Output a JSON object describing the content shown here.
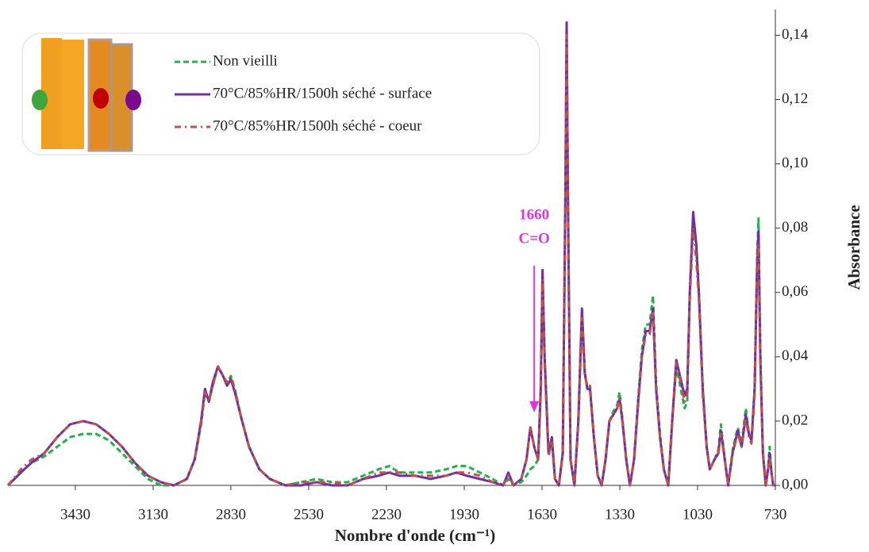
{
  "chart_data": {
    "type": "line",
    "xlabel": "Nombre d'onde (cm⁻¹)",
    "ylabel": "Absorbance",
    "xlim": [
      3690,
      730
    ],
    "ylim": [
      0,
      0.148
    ],
    "xticks": [
      3430,
      3130,
      2830,
      2530,
      2230,
      1930,
      1630,
      1330,
      1030,
      730
    ],
    "yticks": [
      {
        "value": 0,
        "label": "0,00"
      },
      {
        "value": 0.02,
        "label": "0,02"
      },
      {
        "value": 0.04,
        "label": "0,04"
      },
      {
        "value": 0.06,
        "label": "0,06"
      },
      {
        "value": 0.08,
        "label": "0,08"
      },
      {
        "value": 0.1,
        "label": "0,10"
      },
      {
        "value": 0.12,
        "label": "0,12"
      },
      {
        "value": 0.14,
        "label": "0,14"
      }
    ],
    "annotation": {
      "x": 1660,
      "text": "C=O",
      "color": "#e033e0"
    },
    "x": [
      3690,
      3640,
      3600,
      3550,
      3500,
      3450,
      3400,
      3350,
      3300,
      3250,
      3200,
      3150,
      3100,
      3050,
      3000,
      2970,
      2945,
      2930,
      2915,
      2900,
      2880,
      2860,
      2845,
      2830,
      2815,
      2790,
      2760,
      2720,
      2680,
      2620,
      2560,
      2500,
      2440,
      2380,
      2320,
      2260,
      2220,
      2180,
      2120,
      2060,
      2000,
      1960,
      1920,
      1870,
      1820,
      1780,
      1760,
      1740,
      1710,
      1690,
      1675,
      1660,
      1645,
      1635,
      1628,
      1620,
      1605,
      1592,
      1580,
      1565,
      1550,
      1540,
      1535,
      1530,
      1520,
      1505,
      1490,
      1476,
      1465,
      1455,
      1445,
      1430,
      1415,
      1400,
      1385,
      1370,
      1355,
      1340,
      1331,
      1320,
      1305,
      1291,
      1275,
      1260,
      1245,
      1230,
      1215,
      1202,
      1190,
      1175,
      1160,
      1143,
      1128,
      1112,
      1095,
      1080,
      1070,
      1060,
      1047,
      1035,
      1025,
      1010,
      995,
      983,
      965,
      950,
      940,
      925,
      912,
      895,
      875,
      860,
      844,
      832,
      822,
      810,
      800,
      795,
      788,
      778,
      767,
      758,
      752,
      745,
      738,
      730
    ],
    "series": [
      {
        "name": "Non vieilli",
        "color": "#22b14c",
        "dash": "dashed",
        "values": [
          0.0,
          0.004,
          0.007,
          0.009,
          0.012,
          0.015,
          0.016,
          0.016,
          0.014,
          0.01,
          0.006,
          0.002,
          0.0,
          0.0,
          0.002,
          0.008,
          0.019,
          0.029,
          0.026,
          0.031,
          0.037,
          0.034,
          0.032,
          0.034,
          0.03,
          0.021,
          0.012,
          0.005,
          0.002,
          0.0,
          0.001,
          0.002,
          0.001,
          0.001,
          0.003,
          0.005,
          0.006,
          0.004,
          0.004,
          0.004,
          0.005,
          0.006,
          0.006,
          0.004,
          0.002,
          0.0,
          0.002,
          0.0,
          0.001,
          0.003,
          0.005,
          0.006,
          0.008,
          0.03,
          0.065,
          0.04,
          0.01,
          0.014,
          0.002,
          0.0,
          0.01,
          0.09,
          0.144,
          0.09,
          0.008,
          0.0,
          0.02,
          0.054,
          0.035,
          0.03,
          0.031,
          0.015,
          0.003,
          0.0,
          0.008,
          0.02,
          0.023,
          0.025,
          0.029,
          0.021,
          0.008,
          0.0,
          0.008,
          0.026,
          0.042,
          0.05,
          0.05,
          0.059,
          0.032,
          0.016,
          0.005,
          0.0,
          0.02,
          0.037,
          0.03,
          0.024,
          0.026,
          0.06,
          0.083,
          0.074,
          0.06,
          0.03,
          0.012,
          0.005,
          0.008,
          0.011,
          0.019,
          0.008,
          0.0,
          0.011,
          0.018,
          0.013,
          0.024,
          0.016,
          0.014,
          0.03,
          0.072,
          0.083,
          0.042,
          0.01,
          0.0,
          0.006,
          0.012,
          0.004,
          0.0,
          0.0
        ]
      },
      {
        "name": "70°C/85%HR/1500h séché - surface",
        "color": "#7030a0",
        "dash": "solid",
        "values": [
          0.0,
          0.004,
          0.007,
          0.01,
          0.015,
          0.019,
          0.02,
          0.019,
          0.016,
          0.012,
          0.007,
          0.003,
          0.001,
          0.0,
          0.002,
          0.008,
          0.02,
          0.03,
          0.026,
          0.032,
          0.037,
          0.034,
          0.031,
          0.033,
          0.029,
          0.021,
          0.012,
          0.005,
          0.002,
          0.0,
          0.0,
          0.001,
          0.0,
          0.0,
          0.002,
          0.003,
          0.004,
          0.003,
          0.003,
          0.002,
          0.003,
          0.004,
          0.003,
          0.002,
          0.001,
          0.0,
          0.004,
          0.0,
          0.002,
          0.008,
          0.018,
          0.012,
          0.008,
          0.03,
          0.067,
          0.04,
          0.01,
          0.015,
          0.002,
          0.0,
          0.01,
          0.09,
          0.144,
          0.09,
          0.008,
          0.0,
          0.02,
          0.055,
          0.035,
          0.03,
          0.03,
          0.015,
          0.003,
          0.0,
          0.008,
          0.02,
          0.022,
          0.024,
          0.027,
          0.02,
          0.008,
          0.0,
          0.008,
          0.025,
          0.04,
          0.048,
          0.048,
          0.055,
          0.03,
          0.015,
          0.005,
          0.0,
          0.02,
          0.039,
          0.033,
          0.028,
          0.03,
          0.06,
          0.085,
          0.075,
          0.06,
          0.03,
          0.012,
          0.005,
          0.008,
          0.01,
          0.017,
          0.008,
          0.0,
          0.01,
          0.017,
          0.012,
          0.022,
          0.016,
          0.014,
          0.03,
          0.07,
          0.079,
          0.04,
          0.01,
          0.0,
          0.005,
          0.01,
          0.004,
          0.0,
          0.0
        ]
      },
      {
        "name": "70°C/85%HR/1500h séché - coeur",
        "color": "#c0504d",
        "dash": "dashdot",
        "values": [
          0.0,
          0.005,
          0.008,
          0.01,
          0.015,
          0.019,
          0.02,
          0.019,
          0.016,
          0.012,
          0.007,
          0.003,
          0.001,
          0.0,
          0.002,
          0.008,
          0.019,
          0.029,
          0.026,
          0.031,
          0.037,
          0.034,
          0.032,
          0.034,
          0.03,
          0.021,
          0.012,
          0.005,
          0.002,
          0.0,
          0.001,
          0.001,
          0.001,
          0.0,
          0.002,
          0.004,
          0.004,
          0.004,
          0.003,
          0.003,
          0.003,
          0.004,
          0.004,
          0.003,
          0.001,
          0.0,
          0.003,
          0.0,
          0.002,
          0.008,
          0.018,
          0.012,
          0.008,
          0.028,
          0.064,
          0.038,
          0.009,
          0.014,
          0.002,
          0.0,
          0.01,
          0.085,
          0.14,
          0.085,
          0.008,
          0.0,
          0.019,
          0.052,
          0.034,
          0.031,
          0.031,
          0.015,
          0.003,
          0.0,
          0.008,
          0.02,
          0.022,
          0.024,
          0.027,
          0.02,
          0.008,
          0.0,
          0.008,
          0.024,
          0.04,
          0.047,
          0.047,
          0.054,
          0.03,
          0.015,
          0.005,
          0.0,
          0.019,
          0.038,
          0.032,
          0.026,
          0.028,
          0.058,
          0.08,
          0.07,
          0.058,
          0.028,
          0.012,
          0.005,
          0.008,
          0.01,
          0.016,
          0.008,
          0.0,
          0.01,
          0.016,
          0.012,
          0.021,
          0.015,
          0.013,
          0.028,
          0.068,
          0.075,
          0.038,
          0.01,
          0.0,
          0.005,
          0.009,
          0.004,
          0.0,
          0.0
        ]
      }
    ]
  }
}
